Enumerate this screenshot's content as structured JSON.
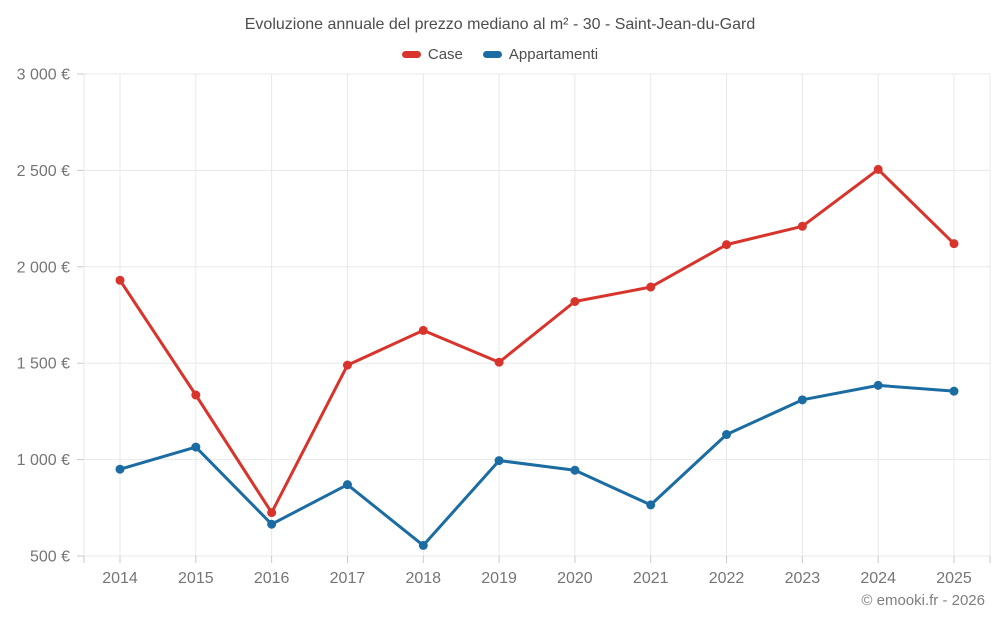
{
  "header": {
    "title": "Evoluzione annuale del prezzo mediano al m² - 30 - Saint-Jean-du-Gard"
  },
  "footer": {
    "attribution": "© emooki.fr - 2026"
  },
  "colors": {
    "case_red": "#d9342b",
    "appartamenti_blue": "#1a6ca3",
    "gridline": "#e8e8e8",
    "tick": "#c9c9c9",
    "axis_label": "#757575",
    "title_text": "#4d4d4d",
    "attribution_text": "#7f7f7f"
  },
  "chart_data": {
    "type": "line",
    "title": "Evoluzione annuale del prezzo mediano al m² - 30 - Saint-Jean-du-Gard",
    "categories": [
      "2014",
      "2015",
      "2016",
      "2017",
      "2018",
      "2019",
      "2020",
      "2021",
      "2022",
      "2023",
      "2024",
      "2025"
    ],
    "series": [
      {
        "name": "Case",
        "color": "#d9342b",
        "values": [
          1930,
          1335,
          725,
          1490,
          1670,
          1505,
          1820,
          1895,
          2115,
          2210,
          2505,
          2120
        ]
      },
      {
        "name": "Appartamenti",
        "color": "#1a6ca3",
        "values": [
          950,
          1065,
          665,
          870,
          555,
          995,
          945,
          765,
          1130,
          1310,
          1385,
          1355
        ]
      }
    ],
    "xlabel": "",
    "ylabel": "",
    "ylim": [
      500,
      3000
    ],
    "yticks": [
      {
        "value": 500,
        "label": "500 €"
      },
      {
        "value": 1000,
        "label": "1 000 €"
      },
      {
        "value": 1500,
        "label": "1 500 €"
      },
      {
        "value": 2000,
        "label": "2 000 €"
      },
      {
        "value": 2500,
        "label": "2 500 €"
      },
      {
        "value": 3000,
        "label": "3 000 €"
      }
    ],
    "grid": true,
    "legend_position": "top",
    "marker": "circle"
  }
}
